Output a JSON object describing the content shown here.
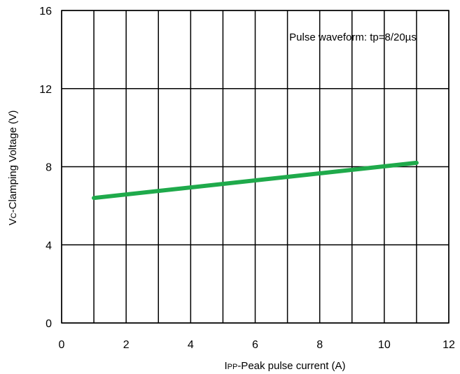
{
  "chart_data": {
    "type": "line",
    "title": "",
    "annotation": "Pulse waveform: tp=8/20µs",
    "xlabel": {
      "main": "I",
      "sub": "PP",
      "rest": "-Peak pulse current (A)"
    },
    "ylabel": {
      "main": "V",
      "sub": "C",
      "rest": "-Clamping Voltage (V)"
    },
    "xlim": [
      0,
      12
    ],
    "ylim": [
      0,
      16
    ],
    "x_ticks": [
      0,
      2,
      4,
      6,
      8,
      10,
      12
    ],
    "y_ticks": [
      0,
      4,
      8,
      12,
      16
    ],
    "x_grid": [
      0,
      1,
      2,
      3,
      4,
      5,
      6,
      7,
      8,
      9,
      10,
      11,
      12
    ],
    "y_grid": [
      0,
      4,
      8,
      12,
      16
    ],
    "grid": true,
    "series": [
      {
        "color": "#1faa4b",
        "x": [
          1,
          11
        ],
        "y": [
          6.4,
          8.2
        ]
      }
    ]
  }
}
